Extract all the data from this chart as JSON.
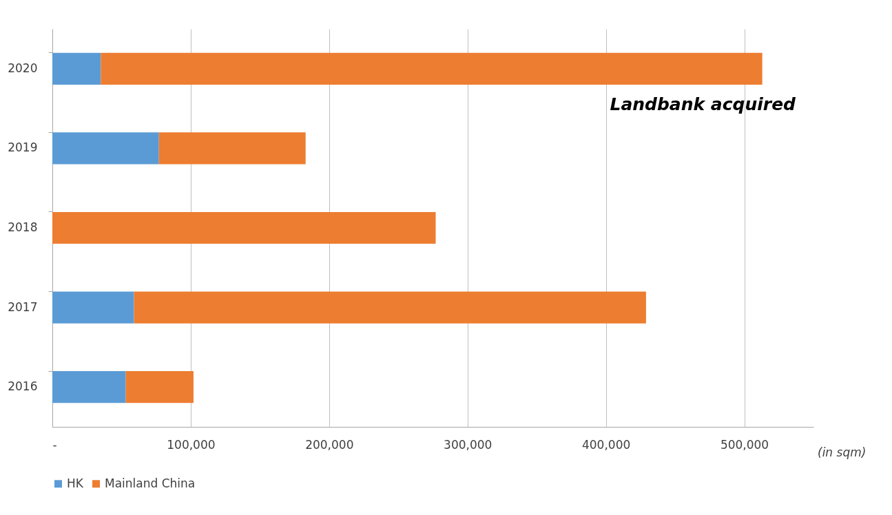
{
  "chart_data": {
    "type": "bar",
    "orientation": "horizontal",
    "stacked": true,
    "categories": [
      "2020",
      "2019",
      "2018",
      "2017",
      "2016"
    ],
    "series": [
      {
        "name": "HK",
        "color": "#5b9bd5",
        "values": [
          35000,
          77000,
          0,
          59000,
          53000
        ]
      },
      {
        "name": "Mainland China",
        "color": "#ed7d31",
        "values": [
          478000,
          106000,
          277000,
          370000,
          49000
        ]
      }
    ],
    "xlim": [
      0,
      550000
    ],
    "xticks": [
      {
        "value": 0,
        "label": "-"
      },
      {
        "value": 100000,
        "label": "100,000"
      },
      {
        "value": 200000,
        "label": "200,000"
      },
      {
        "value": 300000,
        "label": "300,000"
      },
      {
        "value": 400000,
        "label": "400,000"
      },
      {
        "value": 500000,
        "label": "500,000"
      }
    ],
    "grid": "x",
    "legend": "bottom",
    "annotations": [
      "Landbank acquired",
      "(in sqm)"
    ]
  }
}
